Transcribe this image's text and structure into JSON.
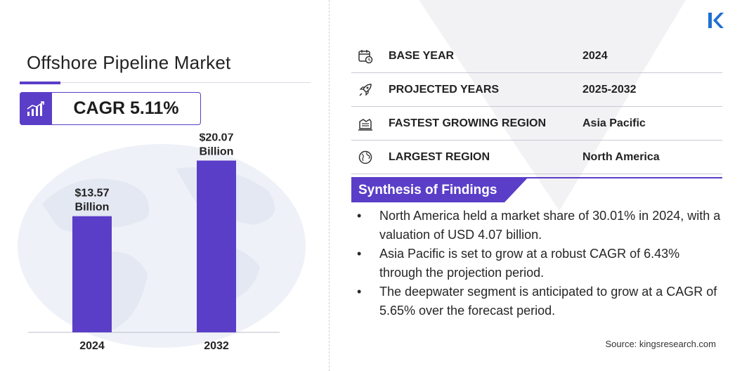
{
  "title": "Offshore Pipeline Market",
  "cagr": "CAGR 5.11%",
  "chart_data": {
    "type": "bar",
    "categories": [
      "2024",
      "2032"
    ],
    "values": [
      13.57,
      20.07
    ],
    "data_labels": [
      [
        "$13.57",
        "Billion"
      ],
      [
        "$20.07",
        "Billion"
      ]
    ],
    "bar_color": "#5b3ec8",
    "ylim": [
      0,
      22
    ],
    "grid": false
  },
  "info": [
    {
      "label": "BASE YEAR",
      "value": "2024",
      "icon": "calendar-icon"
    },
    {
      "label": "PROJECTED YEARS",
      "value": "2025-2032",
      "icon": "rocket-icon"
    },
    {
      "label": "FASTEST GROWING REGION",
      "value": "Asia Pacific",
      "icon": "region-icon"
    },
    {
      "label": "LARGEST REGION",
      "value": "North America",
      "icon": "globe-icon"
    }
  ],
  "synthesis": {
    "title": "Synthesis of Findings",
    "bullet": "•",
    "items": [
      "North America held a market share of 30.01% in 2024, with a valuation of USD 4.07 billion.",
      "Asia Pacific is set to grow at a robust CAGR of 6.43% through the projection period.",
      "The deepwater segment is anticipated to grow at a CAGR of 5.65% over the forecast period."
    ]
  },
  "source": "Source: kingsresearch.com",
  "colors": {
    "accent": "#5b3ec8",
    "rule": "#c9c9d3"
  }
}
